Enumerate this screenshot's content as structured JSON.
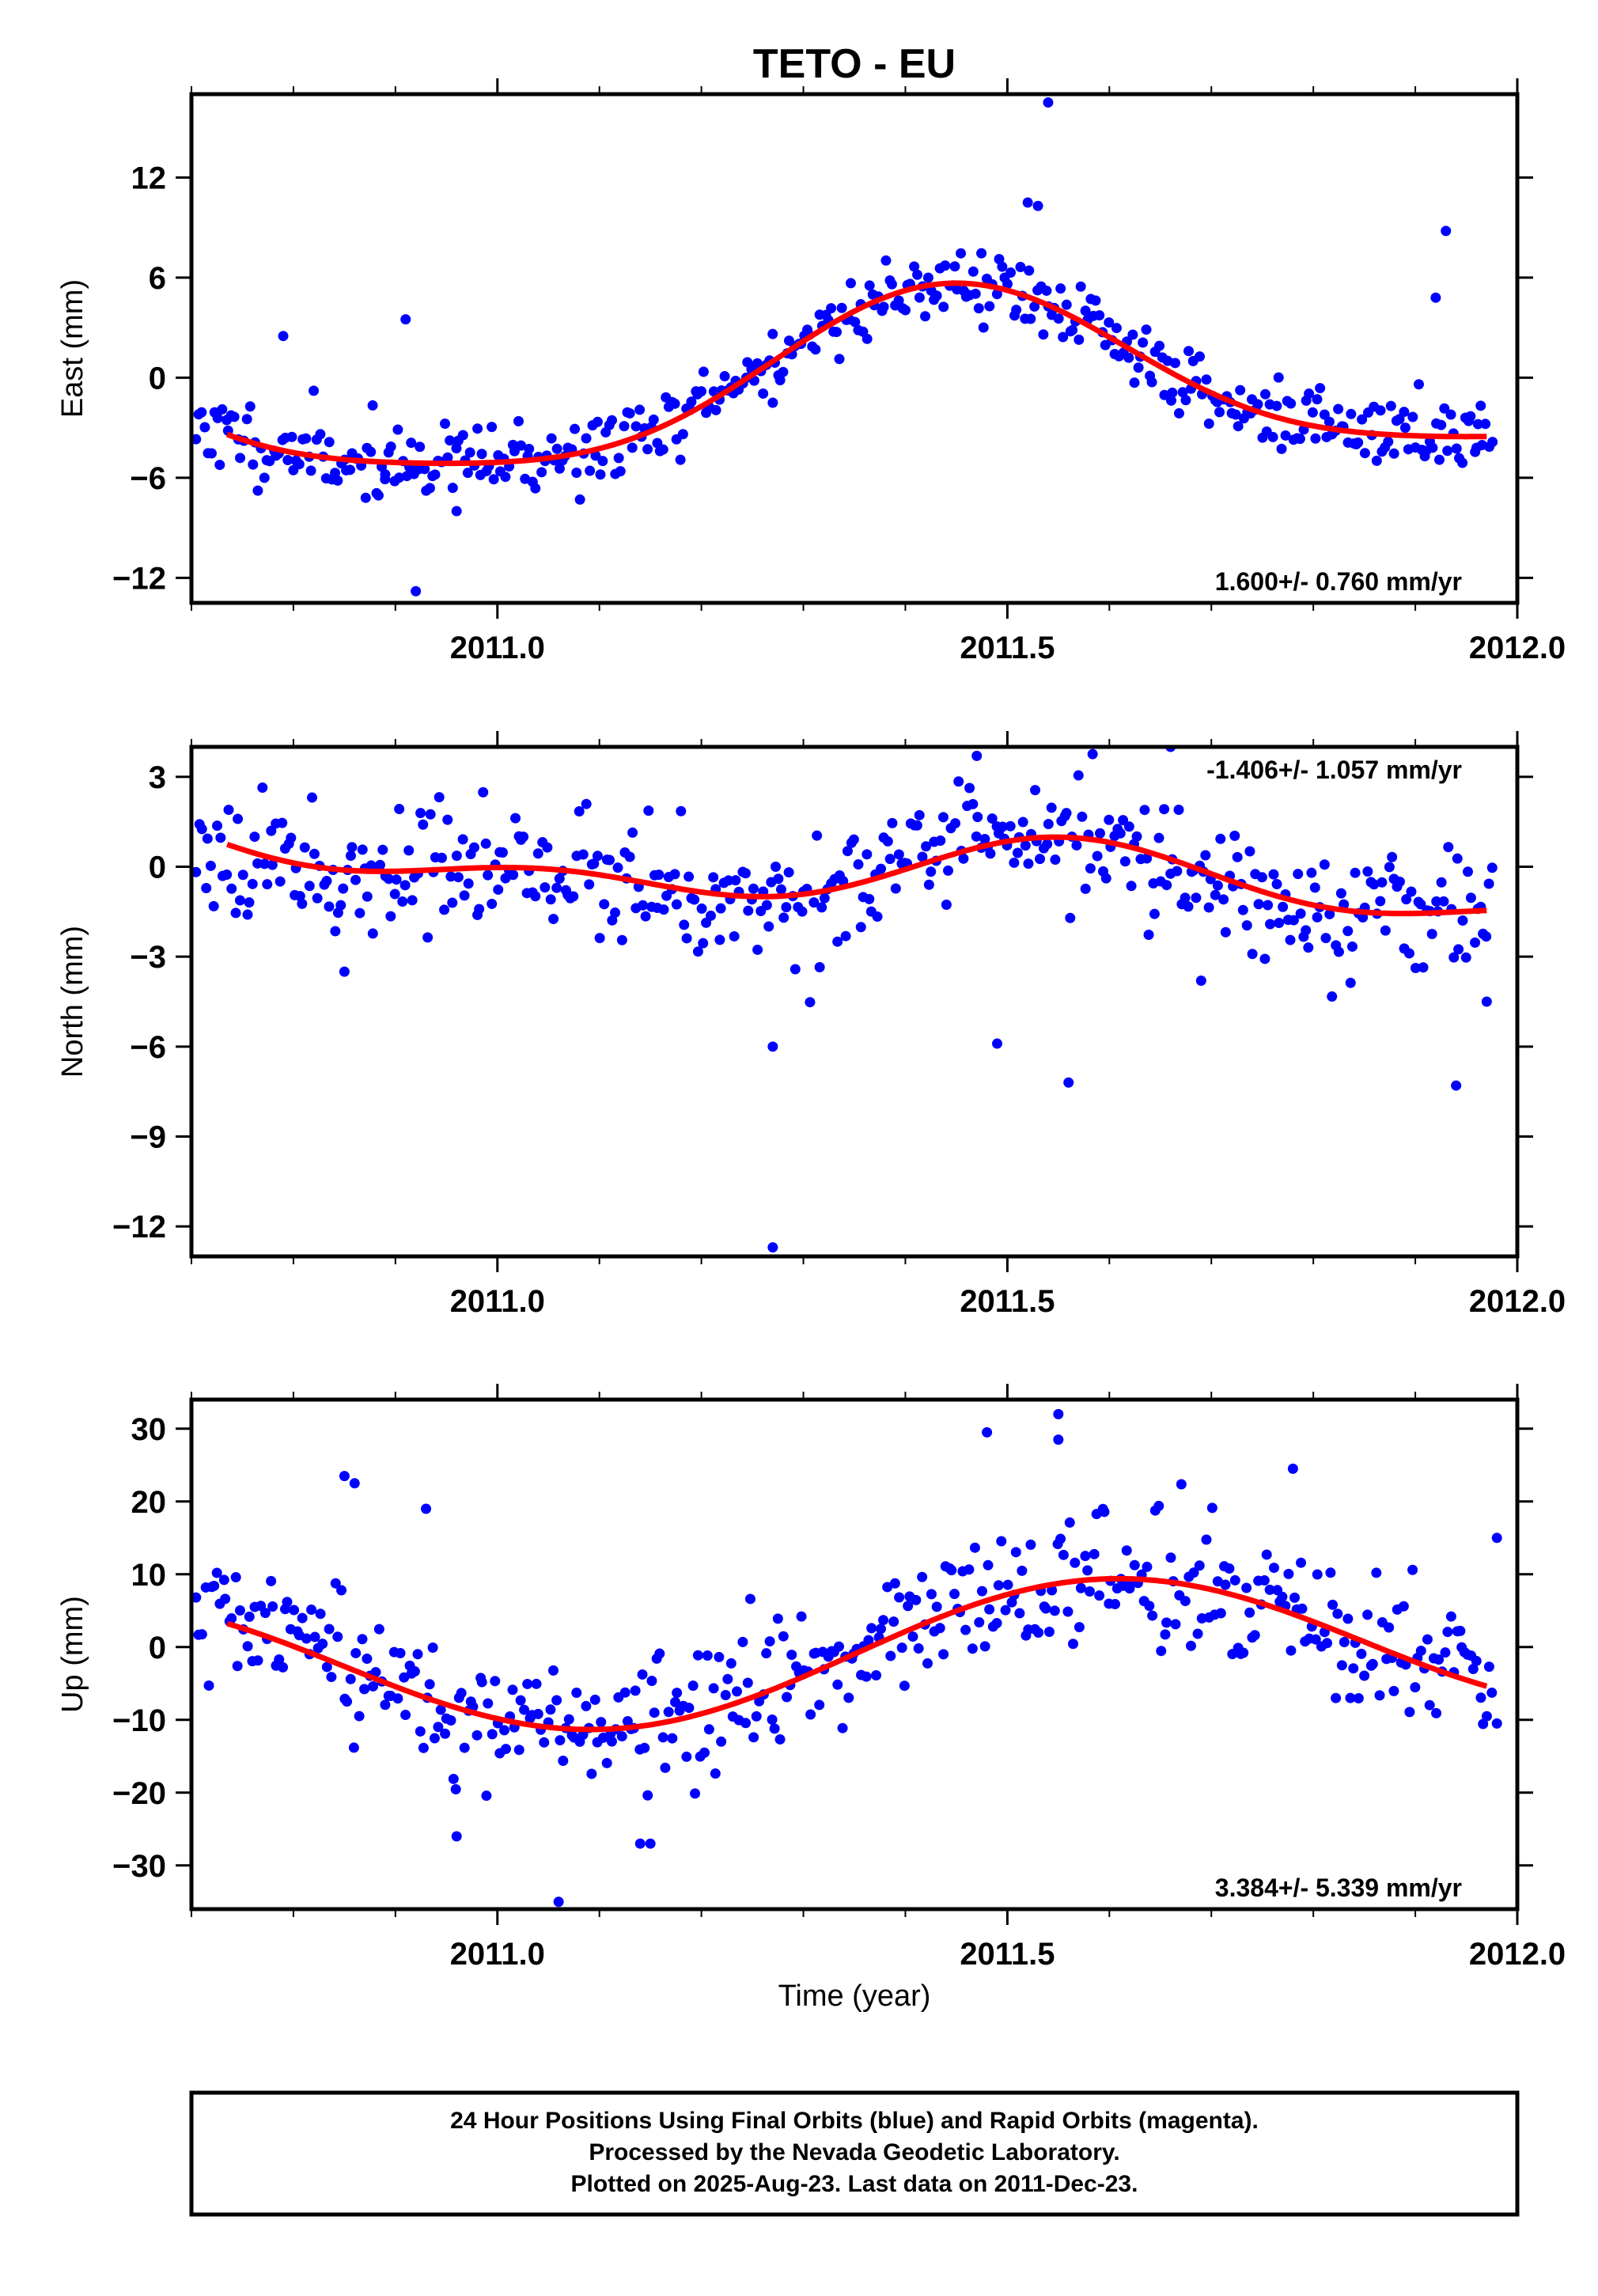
{
  "title": "TETO - EU",
  "x_axis_label": "Time (year)",
  "colors": {
    "points": "#0000ff",
    "fit": "#ff0000",
    "frame": "#000000"
  },
  "footer": {
    "line1": "24 Hour Positions Using Final Orbits (blue) and Rapid Orbits (magenta).",
    "line2": "Processed by the Nevada Geodetic Laboratory.",
    "line3": "Plotted on 2025-Aug-23. Last data on 2011-Dec-23."
  },
  "chart_data": [
    {
      "type": "scatter",
      "id": "east",
      "ylabel": "East (mm)",
      "rate_label": "1.600+/- 0.760 mm/yr",
      "rate_position": "bottom-right",
      "xlim": [
        2010.7,
        2012.0
      ],
      "ylim": [
        -13.5,
        17
      ],
      "xticks": [
        2011.0,
        2011.5,
        2012.0
      ],
      "xtick_labels": [
        "2011.0",
        "2011.5",
        "2012.0"
      ],
      "yticks": [
        -12,
        -6,
        0,
        6,
        12
      ],
      "ytick_labels": [
        "−12",
        "−6",
        "0",
        "6",
        "12"
      ],
      "fit": {
        "offset": -0.5,
        "trend": 1.6,
        "amp1": 5.0,
        "phase1": 2011.45,
        "amp2": 1.0,
        "phase2": 2011.44,
        "center": 2011.34
      },
      "noise": 1.1,
      "outliers": [
        [
          2010.92,
          -12.8
        ],
        [
          2010.96,
          -8.0
        ],
        [
          2011.54,
          16.5
        ],
        [
          2011.52,
          10.5
        ],
        [
          2011.53,
          10.3
        ],
        [
          2011.93,
          8.8
        ],
        [
          2011.92,
          4.8
        ],
        [
          2011.96,
          -4.2
        ],
        [
          2011.27,
          -1.5
        ],
        [
          2010.91,
          3.5
        ],
        [
          2010.89,
          -5.8
        ],
        [
          2010.79,
          2.5
        ]
      ],
      "seed": 11
    },
    {
      "type": "scatter",
      "id": "north",
      "ylabel": "North (mm)",
      "rate_label": "-1.406+/- 1.057 mm/yr",
      "rate_position": "top-right",
      "xlim": [
        2010.7,
        2012.0
      ],
      "ylim": [
        -13,
        4
      ],
      "xticks": [
        2011.0,
        2011.5,
        2012.0
      ],
      "xtick_labels": [
        "2011.0",
        "2011.5",
        "2012.0"
      ],
      "yticks": [
        -12,
        -9,
        -6,
        -3,
        0,
        3
      ],
      "ytick_labels": [
        "−12",
        "−9",
        "−6",
        "−3",
        "0",
        "3"
      ],
      "fit": {
        "offset": -0.2,
        "trend": -1.406,
        "amp1": 0.9,
        "phase1": 2011.58,
        "amp2": 0.6,
        "phase2": 2011.05,
        "center": 2011.34
      },
      "noise": 1.0,
      "outliers": [
        [
          2011.27,
          -12.7
        ],
        [
          2011.56,
          -7.2
        ],
        [
          2011.94,
          -7.3
        ],
        [
          2011.49,
          -5.9
        ],
        [
          2011.27,
          -6.0
        ],
        [
          2011.66,
          4.0
        ],
        [
          2011.47,
          3.7
        ],
        [
          2011.97,
          -4.5
        ],
        [
          2010.85,
          -3.5
        ],
        [
          2011.69,
          -3.8
        ]
      ],
      "seed": 23
    },
    {
      "type": "scatter",
      "id": "up",
      "ylabel": "Up (mm)",
      "rate_label": "3.384+/- 5.339 mm/yr",
      "rate_position": "bottom-right",
      "xlim": [
        2010.7,
        2012.0
      ],
      "ylim": [
        -36,
        34
      ],
      "xticks": [
        2011.0,
        2011.5,
        2012.0
      ],
      "xtick_labels": [
        "2011.0",
        "2011.5",
        "2012.0"
      ],
      "yticks": [
        -30,
        -20,
        -10,
        0,
        10,
        20,
        30
      ],
      "ytick_labels": [
        "−30",
        "−20",
        "−10",
        "0",
        "10",
        "20",
        "30"
      ],
      "fit": {
        "offset": -1.0,
        "trend": 3.384,
        "amp1": 9.5,
        "phase1": 2011.6,
        "amp2": 0.0,
        "phase2": 2011.0,
        "center": 2011.34
      },
      "noise": 4.5,
      "outliers": [
        [
          2011.55,
          32.0
        ],
        [
          2011.55,
          28.5
        ],
        [
          2011.48,
          29.5
        ],
        [
          2010.85,
          23.5
        ],
        [
          2010.86,
          22.5
        ],
        [
          2010.93,
          19.0
        ],
        [
          2011.78,
          24.5
        ],
        [
          2011.06,
          -35.0
        ],
        [
          2011.14,
          -27.0
        ],
        [
          2011.15,
          -27.0
        ],
        [
          2010.96,
          -26.0
        ],
        [
          2011.98,
          15.0
        ],
        [
          2011.98,
          -10.5
        ]
      ],
      "seed": 37
    }
  ]
}
